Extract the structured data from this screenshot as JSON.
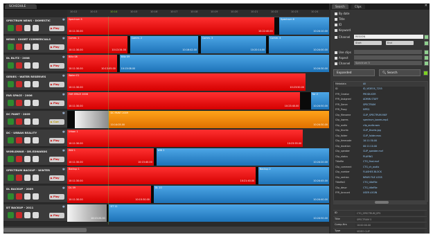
{
  "window": {
    "tab_label": "SCHEDULE"
  },
  "timeline": {
    "ticks": [
      "10:12",
      "10:13",
      "10:14",
      "10:15",
      "10:16",
      "10:17",
      "10:18",
      "10:19",
      "10:20",
      "10:21",
      "10:22",
      "10:23",
      "10:24"
    ],
    "now_index": 2
  },
  "rows": [
    {
      "name": "SPECTRUM NEWS - DOMESTIC",
      "button": "Play",
      "clips": [
        {
          "color": "red",
          "start": 0,
          "end": 0.79,
          "title": "Spectrum 5",
          "time_left": "10:11:30.00",
          "time_right": "10:22:40.00"
        },
        {
          "color": "black",
          "start": 0.79,
          "end": 0.81,
          "title": "",
          "time_left": "",
          "time_right": ""
        },
        {
          "color": "blue",
          "start": 0.81,
          "end": 1.0,
          "title": "Spectrum 6",
          "time_left": "",
          "time_right": "10:24:10.00"
        }
      ]
    },
    {
      "name": "NEWS - SHORT COMMERCIALS",
      "button": "Play",
      "clips": [
        {
          "color": "red",
          "start": 0,
          "end": 0.23,
          "title": "Comm. 1",
          "time_left": "10:11:30.00",
          "time_right": "10:13:34.00"
        },
        {
          "color": "black",
          "start": 0.23,
          "end": 0.24,
          "title": "",
          "time_left": "",
          "time_right": ""
        },
        {
          "color": "blue",
          "start": 0.24,
          "end": 0.5,
          "title": "Comm. 2",
          "time_left": "",
          "time_right": "10:16:42.00"
        },
        {
          "color": "black",
          "start": 0.5,
          "end": 0.51,
          "title": "",
          "time_left": "",
          "time_right": ""
        },
        {
          "color": "blue",
          "start": 0.51,
          "end": 0.76,
          "title": "Comm. 3",
          "time_left": "",
          "time_right": "10:20:14.00"
        },
        {
          "color": "black",
          "start": 0.76,
          "end": 0.77,
          "title": "",
          "time_left": "",
          "time_right": ""
        },
        {
          "color": "blue",
          "start": 0.77,
          "end": 1.0,
          "title": "Comm. 4",
          "time_left": "",
          "time_right": "10:24:00.00"
        }
      ]
    },
    {
      "name": "DL BLITZ - 2008",
      "button": "Play",
      "clips": [
        {
          "color": "red",
          "start": 0,
          "end": 0.19,
          "title": "Blitz 08",
          "time_left": "10:11:30.00",
          "time_right": "10:13:05.00"
        },
        {
          "color": "black",
          "start": 0.19,
          "end": 0.2,
          "title": "",
          "time_left": "",
          "time_right": ""
        },
        {
          "color": "blue",
          "start": 0.2,
          "end": 1.0,
          "title": "Blitz 09",
          "time_left": "10:13:08.00",
          "time_right": "10:24:30.00"
        }
      ]
    },
    {
      "name": "SERIES - WATER RESERVES",
      "button": "Play",
      "clips": [
        {
          "color": "red",
          "start": 0,
          "end": 0.91,
          "title": "Water E1",
          "time_left": "10:11:30.00",
          "time_right": "10:23:50.00"
        }
      ]
    },
    {
      "name": "FAR SPACE - 2006",
      "button": "Play",
      "clips": [
        {
          "color": "red",
          "start": 0,
          "end": 0.89,
          "title": "FAR SPACE 2006",
          "time_left": "10:11:30.00",
          "time_right": "10:23:40.00"
        },
        {
          "color": "black",
          "start": 0.89,
          "end": 0.93,
          "title": "",
          "time_left": "",
          "time_right": ""
        },
        {
          "color": "blue",
          "start": 0.93,
          "end": 1.0,
          "title": "Far 2",
          "time_left": "",
          "time_right": "10:24:50.00"
        }
      ]
    },
    {
      "name": "DC PAINT - 2009",
      "button": "Cue",
      "clips": [
        {
          "color": "black",
          "start": 0,
          "end": 0.03,
          "title": "",
          "time_left": "",
          "time_right": ""
        },
        {
          "color": "grey",
          "start": 0.03,
          "end": 0.16,
          "title": "",
          "time_left": "",
          "time_right": ""
        },
        {
          "color": "orange",
          "start": 0.16,
          "end": 1.0,
          "title": "DC PAINT 2009",
          "time_left": "10:14:05.00",
          "time_right": "10:24:30.00"
        }
      ]
    },
    {
      "name": "DC - URBAN REALITY",
      "button": "Play",
      "clips": [
        {
          "color": "red",
          "start": 0,
          "end": 0.9,
          "title": "Urban 1",
          "time_left": "10:11:30.00",
          "time_right": "10:23:55.00"
        }
      ]
    },
    {
      "name": "WORLDWAR - DR.EDWARDS",
      "button": "Play",
      "clips": [
        {
          "color": "red",
          "start": 0,
          "end": 0.33,
          "title": "WW 1",
          "time_left": "10:11:30.00",
          "time_right": "10:15:40.00"
        },
        {
          "color": "black",
          "start": 0.33,
          "end": 0.34,
          "title": "",
          "time_left": "",
          "time_right": ""
        },
        {
          "color": "blue",
          "start": 0.34,
          "end": 1.0,
          "title": "WW 2",
          "time_left": "",
          "time_right": "10:24:20.00"
        }
      ]
    },
    {
      "name": "SPECTRUM BACKUP - WINTER",
      "button": "Play",
      "clips": [
        {
          "color": "red",
          "start": 0,
          "end": 0.72,
          "title": "Backup 1",
          "time_left": "10:11:30.00",
          "time_right": "10:21:40.00"
        },
        {
          "color": "black",
          "start": 0.72,
          "end": 0.73,
          "title": "",
          "time_left": "",
          "time_right": ""
        },
        {
          "color": "blue",
          "start": 0.73,
          "end": 1.0,
          "title": "Backup 2",
          "time_left": "",
          "time_right": "10:24:45.00"
        }
      ]
    },
    {
      "name": "DL BACKUP - 2009",
      "button": "Play",
      "clips": [
        {
          "color": "red",
          "start": 0,
          "end": 0.32,
          "title": "DL 09",
          "time_left": "10:11:30.00",
          "time_right": "10:15:30.00"
        },
        {
          "color": "black",
          "start": 0.32,
          "end": 0.33,
          "title": "",
          "time_left": "",
          "time_right": ""
        },
        {
          "color": "blue",
          "start": 0.33,
          "end": 1.0,
          "title": "DL 10",
          "time_left": "",
          "time_right": "10:24:40.00"
        }
      ]
    },
    {
      "name": "DT BACKUP - 2011",
      "button": "Play",
      "clips": [
        {
          "color": "grey",
          "start": 0,
          "end": 0.15,
          "title": "",
          "time_left": "",
          "time_right": "10:13:20.00"
        },
        {
          "color": "black",
          "start": 0.15,
          "end": 0.16,
          "title": "",
          "time_left": "",
          "time_right": ""
        },
        {
          "color": "blue",
          "start": 0.16,
          "end": 1.0,
          "title": "DT 11",
          "time_left": "",
          "time_right": "10:24:50.00"
        }
      ]
    }
  ],
  "panel": {
    "tabs": [
      "Search",
      "Clips"
    ],
    "checks": [
      "By date",
      "Title",
      "ID",
      "Keyword"
    ],
    "field_label": "Channel",
    "field_value": "REGION",
    "mini1": "Start",
    "mini2": "End",
    "check_more": [
      "Use clips",
      "Aspect",
      "Channel"
    ],
    "check_more_value": "Spectrum 5",
    "expand_label": "Expanded",
    "search_label": "Search",
    "table_header": [
      "Metadata",
      "All"
    ],
    "table": [
      [
        "ID",
        "ID_VIDEOS_7255"
      ],
      [
        "FFR_Creator",
        "PRODUCER"
      ],
      [
        "FFR_Assigned",
        "ADMIN STAFF"
      ],
      [
        "FFR_Genre",
        "SPECTRUM"
      ],
      [
        "FFR_Proxy",
        "MPEG"
      ],
      [
        "Clip_filename",
        "CLIP_SPECTRUM.MXF"
      ],
      [
        "Clip_lowres",
        "spectrum_lowres.mp4"
      ],
      [
        "Clip_audio",
        "clip_audio.wav"
      ],
      [
        "Clip_thumb",
        "CLIP_thumb.jpg"
      ],
      [
        "Clip_folder",
        "CLIP_folder.mov"
      ],
      [
        "Clip_timecode",
        "10:11:30.00"
      ],
      [
        "Clip_duration",
        "00:11:10.00"
      ],
      [
        "Clip_speaker",
        "CLIP_speaker.mxf"
      ],
      [
        "Clip_status",
        "PLAYING"
      ],
      [
        "Titlefile",
        "CTG_final.mxf"
      ],
      [
        "Clip_comment",
        "CTG_ch_audio"
      ],
      [
        "Clip_number",
        "FLASHES BLOCK"
      ],
      [
        "Clip_section",
        "NEWS FILE LOGS"
      ],
      [
        "Titlefile2",
        "CTG_titleFile"
      ],
      [
        "Clip_descr",
        "CTG_titleFile"
      ],
      [
        "FFR_Account",
        "USER LOGIN"
      ]
    ],
    "details": [
      [
        "ID",
        "CTG_SPECTRUM_EP5"
      ],
      [
        "Title",
        "SPECTRUM 5"
      ],
      [
        "Comp.Hrs",
        "10:00:00.00"
      ],
      [
        "Type",
        "VIDEO CLIP"
      ]
    ]
  },
  "colors": {
    "red": "#e01010",
    "blue": "#2c8bd4",
    "orange": "#f08a0a",
    "now": "#7ed321"
  }
}
